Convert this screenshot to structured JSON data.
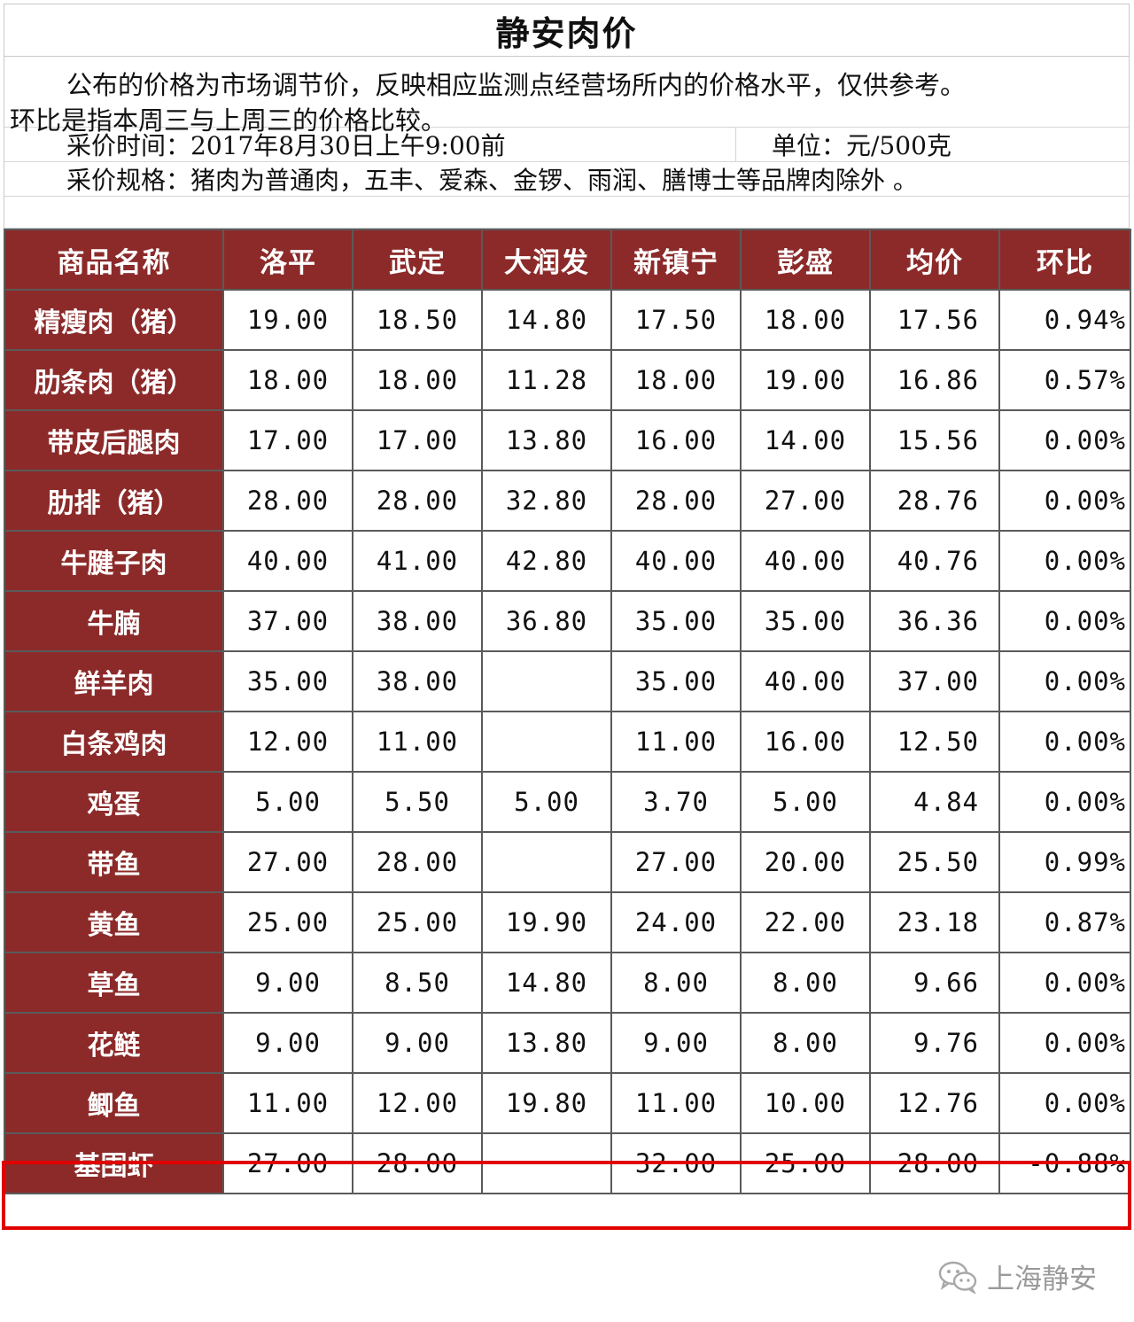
{
  "title": "静安肉价",
  "notes": {
    "line1": "公布的价格为市场调节价，反映相应监测点经营场所内的价格水平，仅供参考。",
    "line2": "环比是指本周三与上周三的价格比较。",
    "time": "采价时间：2017年8月30日上午9:00前",
    "unit": "单位：元/500克",
    "spec": "采价规格：猪肉为普通肉，五丰、爱森、金锣、雨润、膳博士等品牌肉除外 。"
  },
  "table": {
    "headers": [
      "商品名称",
      "洛平",
      "武定",
      "大润发",
      "新镇宁",
      "彭盛",
      "均价",
      "环比"
    ],
    "rows": [
      [
        "精瘦肉（猪）",
        "19.00",
        "18.50",
        "14.80",
        "17.50",
        "18.00",
        "17.56",
        "0.94%"
      ],
      [
        "肋条肉（猪）",
        "18.00",
        "18.00",
        "11.28",
        "18.00",
        "19.00",
        "16.86",
        "0.57%"
      ],
      [
        "带皮后腿肉",
        "17.00",
        "17.00",
        "13.80",
        "16.00",
        "14.00",
        "15.56",
        "0.00%"
      ],
      [
        "肋排（猪）",
        "28.00",
        "28.00",
        "32.80",
        "28.00",
        "27.00",
        "28.76",
        "0.00%"
      ],
      [
        "牛腱子肉",
        "40.00",
        "41.00",
        "42.80",
        "40.00",
        "40.00",
        "40.76",
        "0.00%"
      ],
      [
        "牛腩",
        "37.00",
        "38.00",
        "36.80",
        "35.00",
        "35.00",
        "36.36",
        "0.00%"
      ],
      [
        "鲜羊肉",
        "35.00",
        "38.00",
        "",
        "35.00",
        "40.00",
        "37.00",
        "0.00%"
      ],
      [
        "白条鸡肉",
        "12.00",
        "11.00",
        "",
        "11.00",
        "16.00",
        "12.50",
        "0.00%"
      ],
      [
        "鸡蛋",
        "5.00",
        "5.50",
        "5.00",
        "3.70",
        "5.00",
        "4.84",
        "0.00%"
      ],
      [
        "带鱼",
        "27.00",
        "28.00",
        "",
        "27.00",
        "20.00",
        "25.50",
        "0.99%"
      ],
      [
        "黄鱼",
        "25.00",
        "25.00",
        "19.90",
        "24.00",
        "22.00",
        "23.18",
        "0.87%"
      ],
      [
        "草鱼",
        "9.00",
        "8.50",
        "14.80",
        "8.00",
        "8.00",
        "9.66",
        "0.00%"
      ],
      [
        "花鲢",
        "9.00",
        "9.00",
        "13.80",
        "9.00",
        "8.00",
        "9.76",
        "0.00%"
      ],
      [
        "鲫鱼",
        "11.00",
        "12.00",
        "19.80",
        "11.00",
        "10.00",
        "12.76",
        "0.00%"
      ],
      [
        "基围虾",
        "27.00",
        "28.00",
        "",
        "32.00",
        "25.00",
        "28.00",
        "-0.88%"
      ]
    ]
  },
  "watermark": {
    "text": "上海静安",
    "icon": "wechat-icon"
  },
  "colors": {
    "header_bg": "#8c2a2a",
    "highlight_border": "#e00000"
  }
}
